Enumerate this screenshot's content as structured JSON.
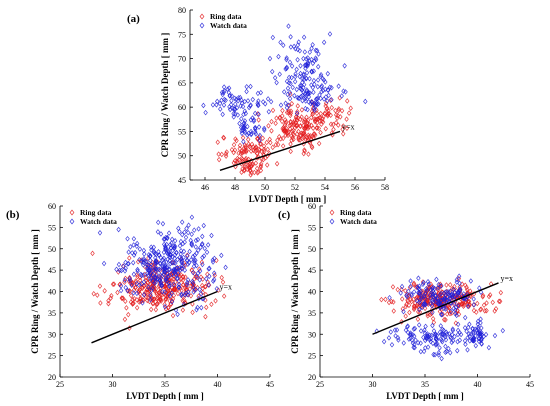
{
  "colors": {
    "ring": "#e31a1c",
    "watch": "#1f1fd8",
    "line": "#000000",
    "axis": "#000000"
  },
  "chart_data": [
    {
      "type": "scatter",
      "panel_label": "(a)",
      "xlabel": "LVDT Depth [ mm ]",
      "ylabel": "CPR Ring / Watch Depth [ mm ]",
      "xlim": [
        45,
        58
      ],
      "ylim": [
        45,
        80
      ],
      "xticks": [
        "46",
        "48",
        "50",
        "52",
        "54",
        "56",
        "58"
      ],
      "yticks": [
        "45",
        "50",
        "55",
        "60",
        "65",
        "70",
        "75",
        "80"
      ],
      "legend_position": "top-left",
      "reference_line": {
        "label": "y=x",
        "x": [
          47,
          55
        ],
        "y": [
          47,
          55
        ]
      },
      "series": [
        {
          "name": "Ring data",
          "marker": "diamond",
          "clusters": [
            {
              "cx": 52.3,
              "cy": 56,
              "sx": 1.1,
              "sy": 2.2,
              "n": 170
            },
            {
              "cx": 49,
              "cy": 51,
              "sx": 0.9,
              "sy": 1.8,
              "n": 90
            },
            {
              "cx": 48.8,
              "cy": 47.3,
              "sx": 0.5,
              "sy": 1.0,
              "n": 30
            },
            {
              "cx": 54.5,
              "cy": 58.5,
              "sx": 0.6,
              "sy": 1.5,
              "n": 40
            }
          ]
        },
        {
          "name": "Watch data",
          "marker": "diamond",
          "clusters": [
            {
              "cx": 52.5,
              "cy": 68,
              "sx": 1.0,
              "sy": 3.5,
              "n": 100
            },
            {
              "cx": 53.2,
              "cy": 62.5,
              "sx": 1.0,
              "sy": 1.8,
              "n": 70
            },
            {
              "cx": 48.3,
              "cy": 61,
              "sx": 1.0,
              "sy": 1.5,
              "n": 70
            },
            {
              "cx": 49,
              "cy": 55.5,
              "sx": 0.5,
              "sy": 1.0,
              "n": 35
            }
          ]
        }
      ]
    },
    {
      "type": "scatter",
      "panel_label": "(b)",
      "xlabel": "LVDT Depth [ mm ]",
      "ylabel": "CPR Ring / Watch Depth [ mm ]",
      "xlim": [
        25,
        45
      ],
      "ylim": [
        20,
        60
      ],
      "xticks": [
        "25",
        "30",
        "35",
        "40",
        "45"
      ],
      "yticks": [
        "20",
        "25",
        "30",
        "35",
        "40",
        "45",
        "50",
        "55",
        "60"
      ],
      "legend_position": "top-left",
      "reference_line": {
        "label": "y=x",
        "x": [
          28,
          40
        ],
        "y": [
          28,
          40
        ]
      },
      "series": [
        {
          "name": "Ring data",
          "marker": "diamond",
          "clusters": [
            {
              "cx": 34.5,
              "cy": 41,
              "sx": 2.3,
              "sy": 3.0,
              "n": 330
            }
          ]
        },
        {
          "name": "Watch data",
          "marker": "diamond",
          "clusters": [
            {
              "cx": 35,
              "cy": 45,
              "sx": 2.0,
              "sy": 4.0,
              "n": 300
            },
            {
              "cx": 37,
              "cy": 52,
              "sx": 1.2,
              "sy": 2.5,
              "n": 40
            }
          ]
        }
      ]
    },
    {
      "type": "scatter",
      "panel_label": "(c)",
      "xlabel": "LVDT Depth [ mm ]",
      "ylabel": "CPR Ring / Watch Depth [ mm ]",
      "xlim": [
        25,
        45
      ],
      "ylim": [
        20,
        60
      ],
      "xticks": [
        "25",
        "30",
        "35",
        "40",
        "45"
      ],
      "yticks": [
        "20",
        "25",
        "30",
        "35",
        "40",
        "45",
        "50",
        "55",
        "60"
      ],
      "legend_position": "top-left",
      "reference_line": {
        "label": "y=x",
        "x": [
          30,
          42
        ],
        "y": [
          30,
          42
        ]
      },
      "series": [
        {
          "name": "Ring data",
          "marker": "diamond",
          "clusters": [
            {
              "cx": 36.5,
              "cy": 38,
              "sx": 2.3,
              "sy": 2.0,
              "n": 260
            }
          ]
        },
        {
          "name": "Watch data",
          "marker": "diamond",
          "clusters": [
            {
              "cx": 36.5,
              "cy": 38.5,
              "sx": 1.8,
              "sy": 2.0,
              "n": 150
            },
            {
              "cx": 36,
              "cy": 29,
              "sx": 2.3,
              "sy": 1.8,
              "n": 130
            },
            {
              "cx": 40,
              "cy": 30.5,
              "sx": 0.5,
              "sy": 1.5,
              "n": 40
            }
          ]
        }
      ]
    }
  ]
}
